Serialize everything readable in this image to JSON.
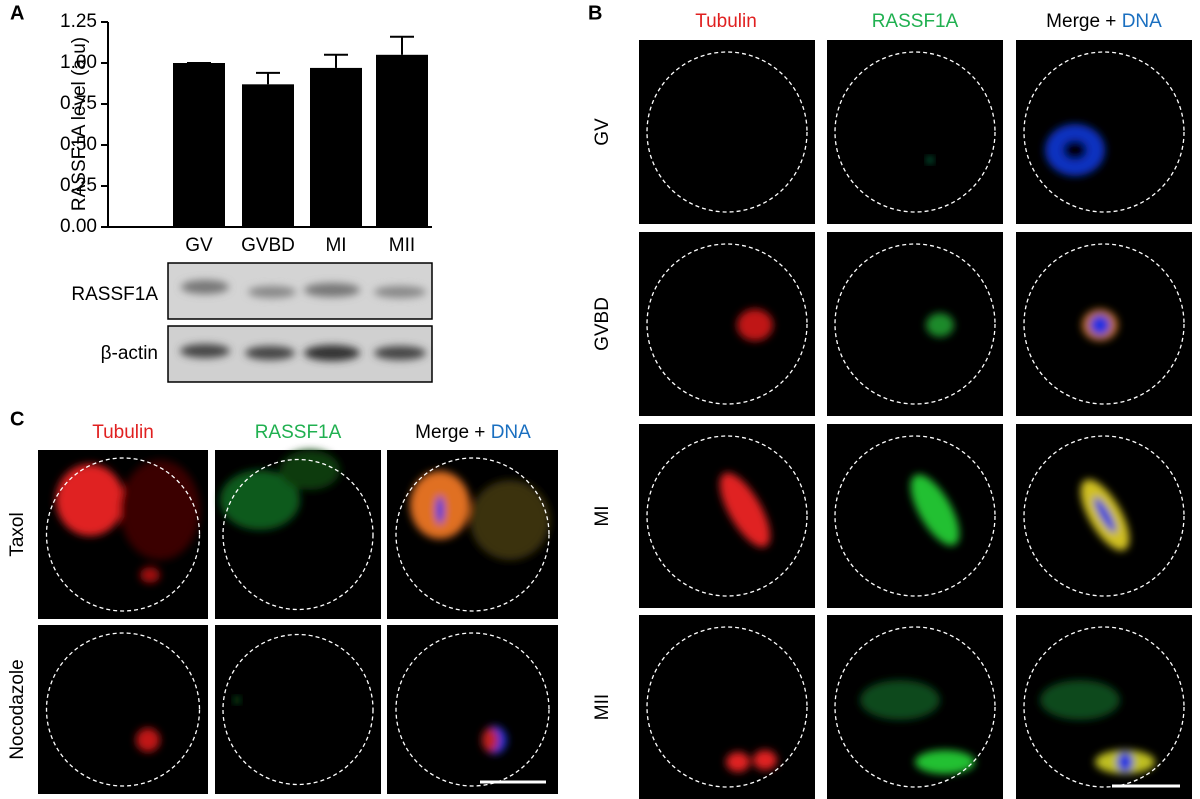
{
  "chart_data": {
    "type": "bar",
    "y_label": "RASSF1A level (a.u)",
    "categories": [
      "GV",
      "GVBD",
      "MI",
      "MII"
    ],
    "values": [
      1.0,
      0.87,
      0.97,
      1.05
    ],
    "errors": [
      0,
      0.07,
      0.08,
      0.11
    ],
    "color": "#000000",
    "ylim": [
      0,
      1.25
    ],
    "yticks": [
      {
        "value": 0,
        "label": "0.00"
      },
      {
        "value": 0.25,
        "label": "0.25"
      },
      {
        "value": 0.5,
        "label": "0.50"
      },
      {
        "value": 0.75,
        "label": "0.75"
      },
      {
        "value": 1,
        "label": "1.00"
      },
      {
        "value": 1.25,
        "label": "1.25"
      }
    ]
  },
  "panel_a": {
    "letter": "A",
    "blot_labels": [
      "RASSF1A",
      "β-actin"
    ]
  },
  "panel_b": {
    "letter": "B",
    "columns": [
      "Tubulin",
      "RASSF1A"
    ],
    "merge_prefix": "Merge +",
    "merge_dna": "DNA",
    "rows": [
      "GV",
      "GVBD",
      "MI",
      "MII"
    ]
  },
  "panel_c": {
    "letter": "C",
    "columns": [
      "Tubulin",
      "RASSF1A"
    ],
    "merge_prefix": "Merge +",
    "merge_dna": "DNA",
    "rows": [
      "Taxol",
      "Nocodazole"
    ]
  }
}
